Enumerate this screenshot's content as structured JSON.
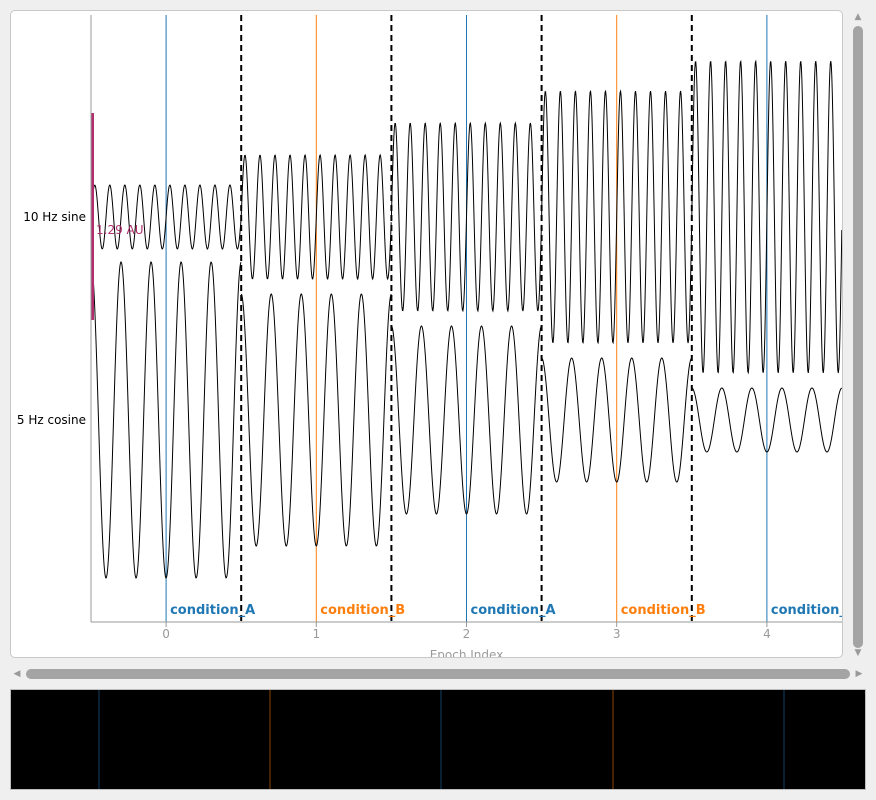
{
  "chart_data": {
    "type": "line",
    "xlabel": "Epoch Index",
    "xticks": [
      0,
      1,
      2,
      3,
      4
    ],
    "xlim": [
      -0.5,
      4.5
    ],
    "epoch_boundaries": [
      0.5,
      1.5,
      2.5,
      3.5
    ],
    "channels": [
      {
        "name": "10 Hz sine",
        "frequency_hz": 10,
        "waveform": "sine"
      },
      {
        "name": "5 Hz cosine",
        "frequency_hz": 5,
        "waveform": "cosine"
      }
    ],
    "scale_bar": {
      "label": "1.29 AU",
      "color": "#b0306d"
    },
    "events": [
      {
        "epoch": 0,
        "label": "condition_A",
        "color": "#1f77b4"
      },
      {
        "epoch": 1,
        "label": "condition_B",
        "color": "#ff7f0e"
      },
      {
        "epoch": 2,
        "label": "condition_A",
        "color": "#1f77b4"
      },
      {
        "epoch": 3,
        "label": "condition_B",
        "color": "#ff7f0e"
      },
      {
        "epoch": 4,
        "label": "condition_A",
        "color": "#1f77b4"
      }
    ]
  },
  "colors": {
    "trace": "#000000",
    "boundary": "#000000",
    "axis": "#9a9a9a"
  },
  "icons": {
    "scroll_up": "triangle-up-icon",
    "scroll_down": "triangle-down-icon",
    "scroll_left": "triangle-left-icon",
    "scroll_right": "triangle-right-icon"
  }
}
